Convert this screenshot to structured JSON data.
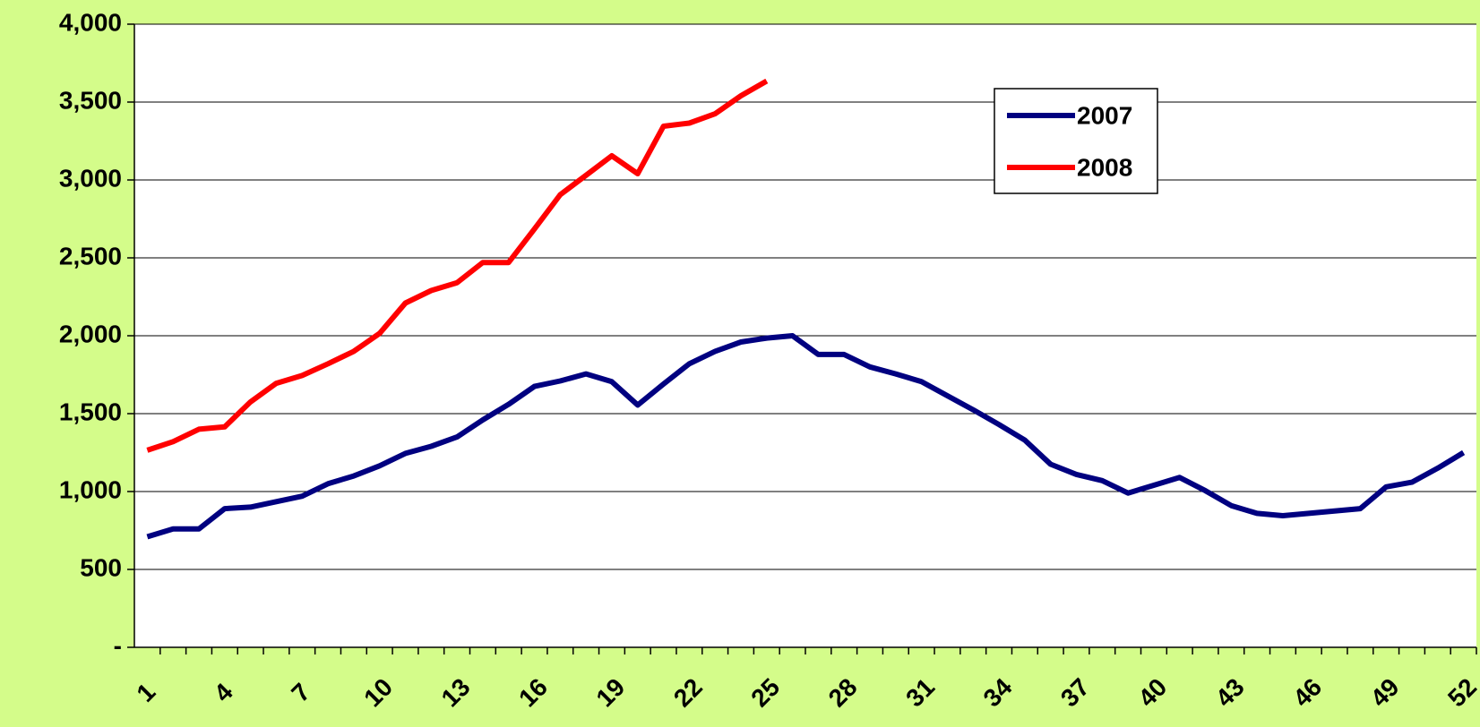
{
  "chart_data": {
    "type": "line",
    "categories": [
      "1",
      null,
      null,
      "4",
      null,
      null,
      "7",
      null,
      null,
      "10",
      null,
      null,
      "13",
      null,
      null,
      "16",
      null,
      null,
      "19",
      null,
      null,
      "22",
      null,
      null,
      "25",
      null,
      null,
      "28",
      null,
      null,
      "31",
      null,
      null,
      "34",
      null,
      null,
      "37",
      null,
      null,
      "40",
      null,
      null,
      "43",
      null,
      null,
      "46",
      null,
      null,
      "49",
      null,
      null,
      "52"
    ],
    "series": [
      {
        "name": "2007",
        "color": "#000080",
        "values": [
          710,
          760,
          760,
          890,
          900,
          935,
          970,
          1050,
          1100,
          1165,
          1245,
          1290,
          1350,
          1460,
          1560,
          1675,
          1710,
          1755,
          1705,
          1555,
          1690,
          1820,
          1900,
          1960,
          1985,
          2000,
          1880,
          1880,
          1800,
          1755,
          1705,
          1615,
          1525,
          1430,
          1330,
          1175,
          1110,
          1070,
          990,
          1040,
          1090,
          1005,
          910,
          860,
          845,
          860,
          875,
          890,
          1030,
          1060,
          1150,
          1250
        ]
      },
      {
        "name": "2008",
        "color": "#ff0000",
        "values": [
          1265,
          1320,
          1400,
          1415,
          1575,
          1695,
          1745,
          1820,
          1900,
          2015,
          2210,
          2290,
          2340,
          2470,
          2470,
          2685,
          2905,
          3030,
          3155,
          3040,
          3345,
          3365,
          3425,
          3540,
          3635,
          null,
          null,
          null,
          null,
          null,
          null,
          null,
          null,
          null,
          null,
          null,
          null,
          null,
          null,
          null,
          null,
          null,
          null,
          null,
          null,
          null,
          null,
          null,
          null,
          null,
          null,
          null
        ]
      }
    ],
    "ylim": [
      0,
      4000
    ],
    "yticks": [
      {
        "value": 0,
        "label": "-"
      },
      500,
      {
        "value": 1000,
        "label": "1,000"
      },
      {
        "value": 1500,
        "label": "1,500"
      },
      {
        "value": 2000,
        "label": "2,000"
      },
      {
        "value": 2500,
        "label": "2,500"
      },
      {
        "value": 3000,
        "label": "3,000"
      },
      {
        "value": 3500,
        "label": "3,500"
      },
      {
        "value": 4000,
        "label": "4,000"
      }
    ],
    "grid": true
  }
}
